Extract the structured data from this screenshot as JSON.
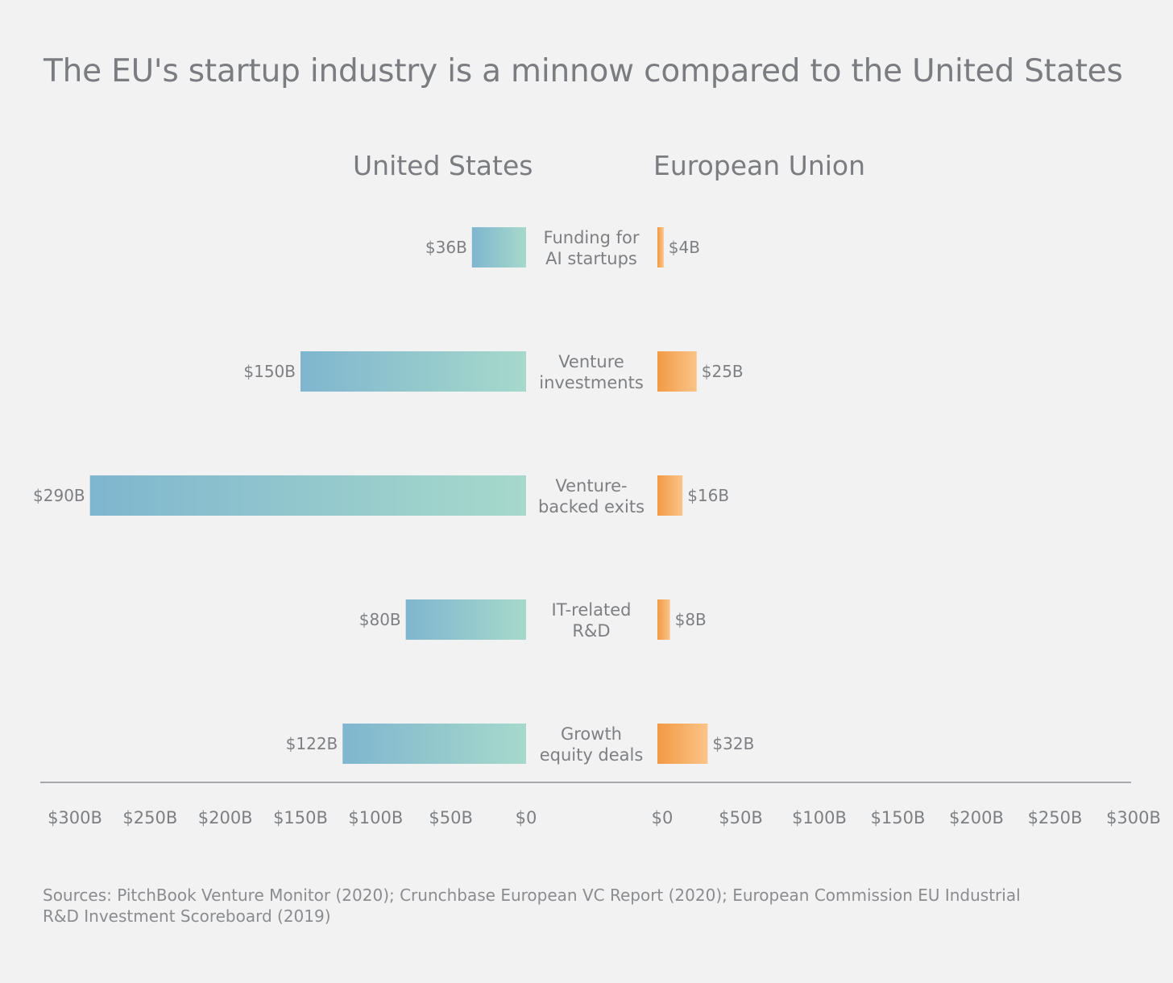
{
  "chart_data": {
    "type": "bar",
    "title": "The EU's startup industry is a minnow compared to the United States",
    "categories": [
      [
        "Funding for",
        "AI startups"
      ],
      [
        "Venture",
        "investments"
      ],
      [
        "Venture-",
        "backed exits"
      ],
      [
        "IT-related",
        "R&D"
      ],
      [
        "Growth",
        "equity deals"
      ]
    ],
    "series": [
      {
        "name": "United States",
        "values": [
          36,
          150,
          290,
          80,
          122
        ],
        "labels": [
          "$36B",
          "$150B",
          "$290B",
          "$80B",
          "$122B"
        ],
        "color_start": "#7fb6cf",
        "color_end": "#a6d9cb"
      },
      {
        "name": "European Union",
        "values": [
          4,
          25,
          16,
          8,
          32
        ],
        "labels": [
          "$4B",
          "$25B",
          "$16B",
          "$8B",
          "$32B"
        ],
        "color_start": "#f29a45",
        "color_end": "#fbc488"
      }
    ],
    "us_axis_ticks": [
      "$300B",
      "$250B",
      "$200B",
      "$150B",
      "$100B",
      "$50B",
      "$0"
    ],
    "eu_axis_ticks": [
      "$0",
      "$50B",
      "$100B",
      "$150B",
      "$200B",
      "$250B",
      "$300B"
    ],
    "tick_values": [
      0,
      50,
      100,
      150,
      200,
      250,
      300
    ],
    "xlim": [
      0,
      300
    ],
    "unit": "billions USD",
    "grid": false
  },
  "sources": "Sources: PitchBook Venture Monitor (2020); Crunchbase European VC Report (2020); European Commission EU Industrial R&D Investment Scoreboard (2019)",
  "colors": {
    "background": "#f2f2f2",
    "text": "#7d7f82",
    "axis": "#a6a8ab"
  }
}
